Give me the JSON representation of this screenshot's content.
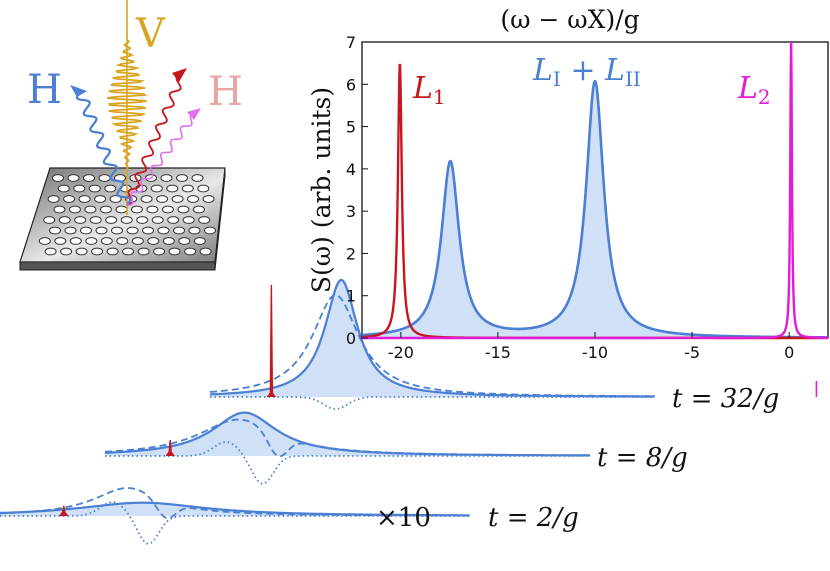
{
  "colors": {
    "blue": "#4a7fd4",
    "blue_fill": "#cfe0f7",
    "red": "#c8161d",
    "magenta": "#e31ad6",
    "gold": "#d9a520",
    "pink": "#e8a5a5",
    "gray_slab": "#a8a8a8"
  },
  "inset_diagram": {
    "labels": {
      "v": "V",
      "h_left": "H",
      "h_right": "H"
    },
    "icons": [
      "incident-v-pulse-icon",
      "emitted-h-wave-icon",
      "red-h-wave-icon",
      "pink-h-wave-icon",
      "photonic-crystal-slab-icon"
    ]
  },
  "chart_data": {
    "type": "line",
    "title": "(ω − ωX)/g",
    "ylabel": "S(ω)  (arb. units)",
    "xlabel": "",
    "xlim": [
      -22,
      2
    ],
    "ylim": [
      0,
      7
    ],
    "xticks": [
      -20,
      -15,
      -10,
      -5,
      0
    ],
    "xtick_labels": [
      "-20",
      "-15",
      "-10",
      "-5",
      "0"
    ],
    "yticks": [
      0,
      1,
      2,
      3,
      4,
      5,
      6,
      7
    ],
    "ytick_labels": [
      "0",
      "1",
      "2",
      "3",
      "4",
      "5",
      "6",
      "7"
    ],
    "grid": false,
    "series": [
      {
        "name": "L1",
        "label_text": "L",
        "label_sub": "1",
        "color": "#c8161d",
        "shape": "lorentzian",
        "center": -20.05,
        "width": 0.12,
        "height": 6.5
      },
      {
        "name": "LI + LII",
        "label_text": "L",
        "label_sub1": "I",
        "label_plus": "+ L",
        "label_sub2": "II",
        "color": "#4a7fd4",
        "shape": "lorentzian",
        "center": -10,
        "width": 0.55,
        "height": 6.05,
        "filled": true
      },
      {
        "name": "LI + LII (second peak)",
        "color": "#4a7fd4",
        "shape": "lorentzian",
        "center": -17.45,
        "width": 0.55,
        "height": 4.15,
        "filled": true
      },
      {
        "name": "L2",
        "label_text": "L",
        "label_sub": "2",
        "color": "#e31ad6",
        "shape": "lorentzian",
        "center": 0.1,
        "width": 0.05,
        "height": 7.2
      }
    ]
  },
  "time_spectra": [
    {
      "label": "t = 32/g",
      "red_peak_x": -20.05,
      "blue_solid": {
        "center": -17.6,
        "width": 0.7,
        "height": 3.9
      },
      "blue_dashed": {
        "center": -17.8,
        "width": 1.0,
        "height": 3.4
      },
      "blue_dotted": {
        "center": -17.8,
        "depth": 0.0
      }
    },
    {
      "label": "t = 8/g",
      "red_peak_x": -20.05,
      "blue_solid": {
        "center": -17.6,
        "width": 1.3,
        "height": 1.55
      },
      "blue_dashed": {
        "center": -17.8,
        "width": 1.6,
        "height": 1.3
      },
      "blue_dotted": {
        "center": -17.0,
        "depth": 1.0
      }
    },
    {
      "label": "t = 2/g",
      "multiplier": "×10",
      "red_peak_x": -20.05,
      "blue_solid": {
        "center": -17.4,
        "width": 2.6,
        "height": 0.95
      },
      "blue_dashed": {
        "center": -17.9,
        "width": 1.4,
        "height": 2.0
      },
      "blue_dotted": {
        "center": -17.2,
        "depth": 2.0
      }
    }
  ]
}
